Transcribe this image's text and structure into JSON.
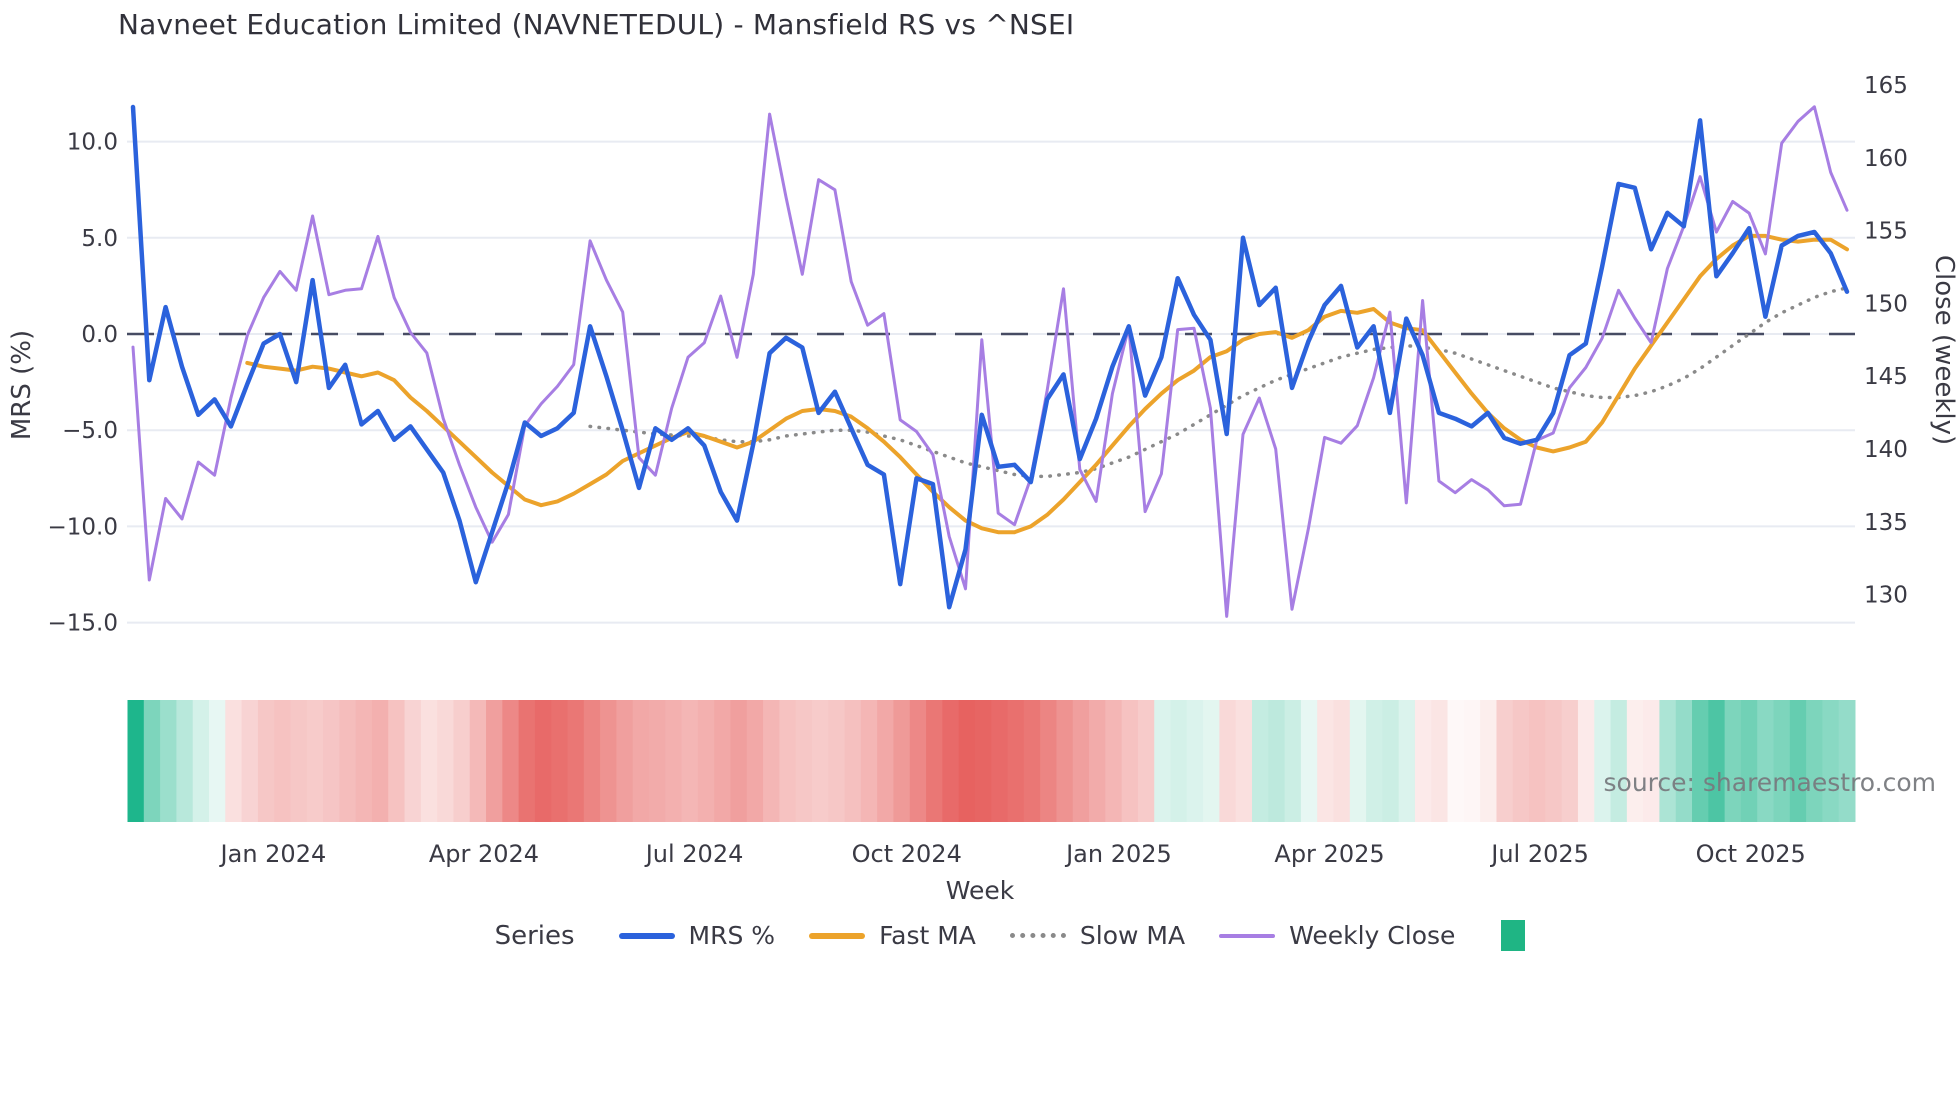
{
  "title": "Navneet Education Limited (NAVNETEDUL) - Mansfield RS vs ^NSEI",
  "source": "source: sharemaestro.com",
  "axes": {
    "left_label": "MRS (%)",
    "right_label": "Close (weekly)",
    "x_label": "Week",
    "left_ticks": [
      {
        "v": 10,
        "label": "10.0"
      },
      {
        "v": 5,
        "label": "5.0"
      },
      {
        "v": 0,
        "label": "0.0"
      },
      {
        "v": -5,
        "label": "−5.0"
      },
      {
        "v": -10,
        "label": "−10.0"
      },
      {
        "v": -15,
        "label": "−15.0"
      }
    ],
    "right_ticks": [
      {
        "v": 165,
        "label": "165"
      },
      {
        "v": 160,
        "label": "160"
      },
      {
        "v": 155,
        "label": "155"
      },
      {
        "v": 150,
        "label": "150"
      },
      {
        "v": 145,
        "label": "145"
      },
      {
        "v": 140,
        "label": "140"
      },
      {
        "v": 135,
        "label": "135"
      },
      {
        "v": 130,
        "label": "130"
      }
    ],
    "x_ticks": [
      {
        "week": 8.6,
        "label": "Jan 2024"
      },
      {
        "week": 21.5,
        "label": "Apr 2024"
      },
      {
        "week": 34.4,
        "label": "Jul 2024"
      },
      {
        "week": 47.4,
        "label": "Oct 2024"
      },
      {
        "week": 60.4,
        "label": "Jan 2025"
      },
      {
        "week": 73.3,
        "label": "Apr 2025"
      },
      {
        "week": 86.2,
        "label": "Jul 2025"
      },
      {
        "week": 99.1,
        "label": "Oct 2025"
      }
    ]
  },
  "legend": {
    "series_label": "Series",
    "items": [
      {
        "label": "MRS %",
        "color": "#2B62DC",
        "style": "solid",
        "thick": true
      },
      {
        "label": "Fast MA",
        "color": "#ECA32B",
        "style": "solid",
        "thick": true
      },
      {
        "label": "Slow MA",
        "color": "#8A8A8A",
        "style": "dotted",
        "thick": false
      },
      {
        "label": "Weekly Close",
        "color": "#A77EE3",
        "style": "solid",
        "thick": false
      }
    ],
    "heatmap_swatch_color": "#1FB584"
  },
  "colors": {
    "grid": "#e8ebf2",
    "zero_line": "#474c63",
    "heat_green": "#12b286",
    "heat_red": "#e4504e",
    "tick_text": "#3a3a44"
  },
  "chart_data": {
    "type": "line",
    "x_unit": "weeks (Nov 2023 - Nov 2025)",
    "n_weeks": 106,
    "ylim_left": [
      -16.2,
      14.8
    ],
    "ylim_right": [
      126.5,
      167.4
    ],
    "grid": "horizontal-only",
    "legend_position": "bottom-center",
    "zero_reference_left": 0,
    "series": [
      {
        "name": "MRS %",
        "axis": "left",
        "color": "#2B62DC",
        "style": "solid",
        "width": 4.5,
        "start_week": 0,
        "values": [
          11.8,
          -2.4,
          1.4,
          -1.7,
          -4.2,
          -3.4,
          -4.8,
          -2.6,
          -0.5,
          0.0,
          -2.5,
          2.8,
          -2.8,
          -1.6,
          -4.7,
          -4.0,
          -5.5,
          -4.8,
          -6.0,
          -7.2,
          -9.7,
          -12.9,
          -10.3,
          -7.7,
          -4.6,
          -5.3,
          -4.9,
          -4.1,
          0.4,
          -2.2,
          -5.0,
          -8.0,
          -4.9,
          -5.5,
          -4.9,
          -5.8,
          -8.2,
          -9.7,
          -5.7,
          -1.0,
          -0.2,
          -0.7,
          -4.1,
          -3.0,
          -4.9,
          -6.8,
          -7.3,
          -13.0,
          -7.5,
          -7.8,
          -14.2,
          -11.2,
          -4.2,
          -6.9,
          -6.8,
          -7.7,
          -3.4,
          -2.1,
          -6.5,
          -4.4,
          -1.7,
          0.4,
          -3.2,
          -1.2,
          2.9,
          1.0,
          -0.3,
          -5.2,
          5.0,
          1.5,
          2.4,
          -2.8,
          -0.4,
          1.5,
          2.5,
          -0.7,
          0.4,
          -4.1,
          0.8,
          -1.1,
          -4.1,
          -4.4,
          -4.8,
          -4.1,
          -5.4,
          -5.7,
          -5.5,
          -4.1,
          -1.1,
          -0.5,
          3.5,
          7.8,
          7.6,
          4.4,
          6.3,
          5.6,
          11.1,
          3.0,
          4.2,
          5.5,
          0.9,
          4.6,
          5.1,
          5.3,
          4.2,
          2.2
        ]
      },
      {
        "name": "Fast MA",
        "axis": "left",
        "color": "#ECA32B",
        "style": "solid",
        "width": 4,
        "start_week": 7,
        "values": [
          -1.5,
          -1.7,
          -1.8,
          -1.9,
          -1.7,
          -1.8,
          -2.0,
          -2.2,
          -2.0,
          -2.4,
          -3.3,
          -4.0,
          -4.8,
          -5.6,
          -6.4,
          -7.2,
          -7.9,
          -8.6,
          -8.9,
          -8.7,
          -8.3,
          -7.8,
          -7.3,
          -6.6,
          -6.2,
          -5.8,
          -5.4,
          -5.1,
          -5.3,
          -5.6,
          -5.9,
          -5.6,
          -5.0,
          -4.4,
          -4.0,
          -3.9,
          -4.0,
          -4.3,
          -4.9,
          -5.6,
          -6.4,
          -7.3,
          -8.2,
          -9.0,
          -9.7,
          -10.1,
          -10.3,
          -10.3,
          -10.0,
          -9.4,
          -8.6,
          -7.7,
          -6.8,
          -5.8,
          -4.8,
          -3.9,
          -3.1,
          -2.4,
          -1.9,
          -1.2,
          -0.9,
          -0.3,
          0.0,
          0.1,
          -0.2,
          0.2,
          0.9,
          1.2,
          1.1,
          1.3,
          0.6,
          0.3,
          0.2,
          -0.9,
          -2.0,
          -3.1,
          -4.1,
          -4.9,
          -5.5,
          -5.9,
          -6.1,
          -5.9,
          -5.6,
          -4.6,
          -3.2,
          -1.8,
          -0.6,
          0.6,
          1.8,
          3.0,
          3.9,
          4.6,
          5.1,
          5.1,
          4.9,
          4.8,
          4.9,
          4.9,
          4.4
        ]
      },
      {
        "name": "Slow MA",
        "axis": "left",
        "color": "#8A8A8A",
        "style": "dotted",
        "width": 3.5,
        "start_week": 28,
        "values": [
          -4.8,
          -4.9,
          -5.0,
          -5.1,
          -5.2,
          -5.25,
          -5.3,
          -5.35,
          -5.5,
          -5.6,
          -5.6,
          -5.5,
          -5.3,
          -5.2,
          -5.1,
          -5.0,
          -5.0,
          -5.1,
          -5.3,
          -5.5,
          -5.8,
          -6.1,
          -6.4,
          -6.7,
          -6.9,
          -7.1,
          -7.3,
          -7.4,
          -7.4,
          -7.3,
          -7.2,
          -7.0,
          -6.7,
          -6.4,
          -6.0,
          -5.6,
          -5.2,
          -4.7,
          -4.2,
          -3.7,
          -3.2,
          -2.8,
          -2.4,
          -2.1,
          -1.8,
          -1.5,
          -1.2,
          -1.0,
          -0.8,
          -0.7,
          -0.6,
          -0.7,
          -0.8,
          -1.0,
          -1.3,
          -1.6,
          -1.9,
          -2.2,
          -2.5,
          -2.8,
          -3.0,
          -3.2,
          -3.3,
          -3.3,
          -3.2,
          -3.0,
          -2.7,
          -2.3,
          -1.8,
          -1.2,
          -0.6,
          0.0,
          0.6,
          1.1,
          1.5,
          1.9,
          2.2,
          2.4
        ]
      },
      {
        "name": "Weekly Close",
        "axis": "right",
        "color": "#A77EE3",
        "style": "solid",
        "width": 3,
        "start_week": 0,
        "values": [
          147.0,
          131.0,
          136.6,
          135.2,
          139.1,
          138.2,
          143.5,
          147.8,
          150.4,
          152.2,
          150.9,
          156.0,
          150.6,
          150.9,
          151.0,
          154.6,
          150.4,
          148.0,
          146.6,
          142.1,
          138.9,
          136.0,
          133.6,
          135.5,
          141.6,
          143.1,
          144.3,
          145.8,
          154.3,
          151.6,
          149.4,
          139.4,
          138.2,
          142.8,
          146.3,
          147.3,
          150.5,
          146.3,
          152.0,
          163.0,
          157.3,
          152.0,
          158.5,
          157.8,
          151.5,
          148.5,
          149.3,
          142.0,
          141.2,
          139.6,
          134.0,
          130.4,
          147.5,
          135.6,
          134.8,
          138.0,
          144.0,
          151.0,
          138.6,
          136.4,
          143.8,
          148.4,
          135.7,
          138.3,
          148.2,
          148.3,
          142.8,
          128.5,
          141.0,
          143.5,
          140.0,
          129.0,
          134.5,
          140.8,
          140.4,
          141.6,
          144.9,
          149.4,
          136.3,
          150.2,
          137.8,
          137.0,
          137.9,
          137.2,
          136.1,
          136.2,
          140.6,
          141.1,
          144.2,
          145.6,
          147.6,
          150.9,
          149.0,
          147.3,
          152.4,
          155.3,
          158.7,
          154.9,
          157.0,
          156.2,
          153.4,
          161.0,
          162.5,
          163.5,
          159.0,
          156.4
        ]
      }
    ],
    "heatmap": {
      "description": "weekly red-green strip under chart, -1 strong red to +1 strong green",
      "values": [
        0.95,
        0.55,
        0.42,
        0.3,
        0.18,
        0.1,
        -0.18,
        -0.25,
        -0.32,
        -0.35,
        -0.32,
        -0.3,
        -0.33,
        -0.38,
        -0.42,
        -0.45,
        -0.35,
        -0.25,
        -0.18,
        -0.22,
        -0.28,
        -0.4,
        -0.55,
        -0.68,
        -0.8,
        -0.85,
        -0.82,
        -0.78,
        -0.7,
        -0.62,
        -0.55,
        -0.5,
        -0.48,
        -0.45,
        -0.42,
        -0.45,
        -0.5,
        -0.55,
        -0.5,
        -0.42,
        -0.35,
        -0.32,
        -0.3,
        -0.32,
        -0.36,
        -0.42,
        -0.5,
        -0.58,
        -0.68,
        -0.78,
        -0.85,
        -0.9,
        -0.88,
        -0.85,
        -0.82,
        -0.78,
        -0.7,
        -0.62,
        -0.55,
        -0.48,
        -0.42,
        -0.35,
        -0.3,
        0.15,
        0.18,
        0.15,
        0.12,
        -0.22,
        -0.18,
        0.25,
        0.28,
        0.22,
        0.1,
        -0.15,
        -0.18,
        0.12,
        0.2,
        0.22,
        0.15,
        -0.12,
        -0.15,
        -0.04,
        -0.05,
        -0.1,
        -0.28,
        -0.32,
        -0.35,
        -0.32,
        -0.28,
        -0.12,
        0.15,
        0.25,
        -0.1,
        -0.12,
        0.35,
        0.45,
        0.65,
        0.75,
        0.55,
        0.6,
        0.5,
        0.55,
        0.65,
        0.55,
        0.5,
        0.45
      ]
    }
  }
}
